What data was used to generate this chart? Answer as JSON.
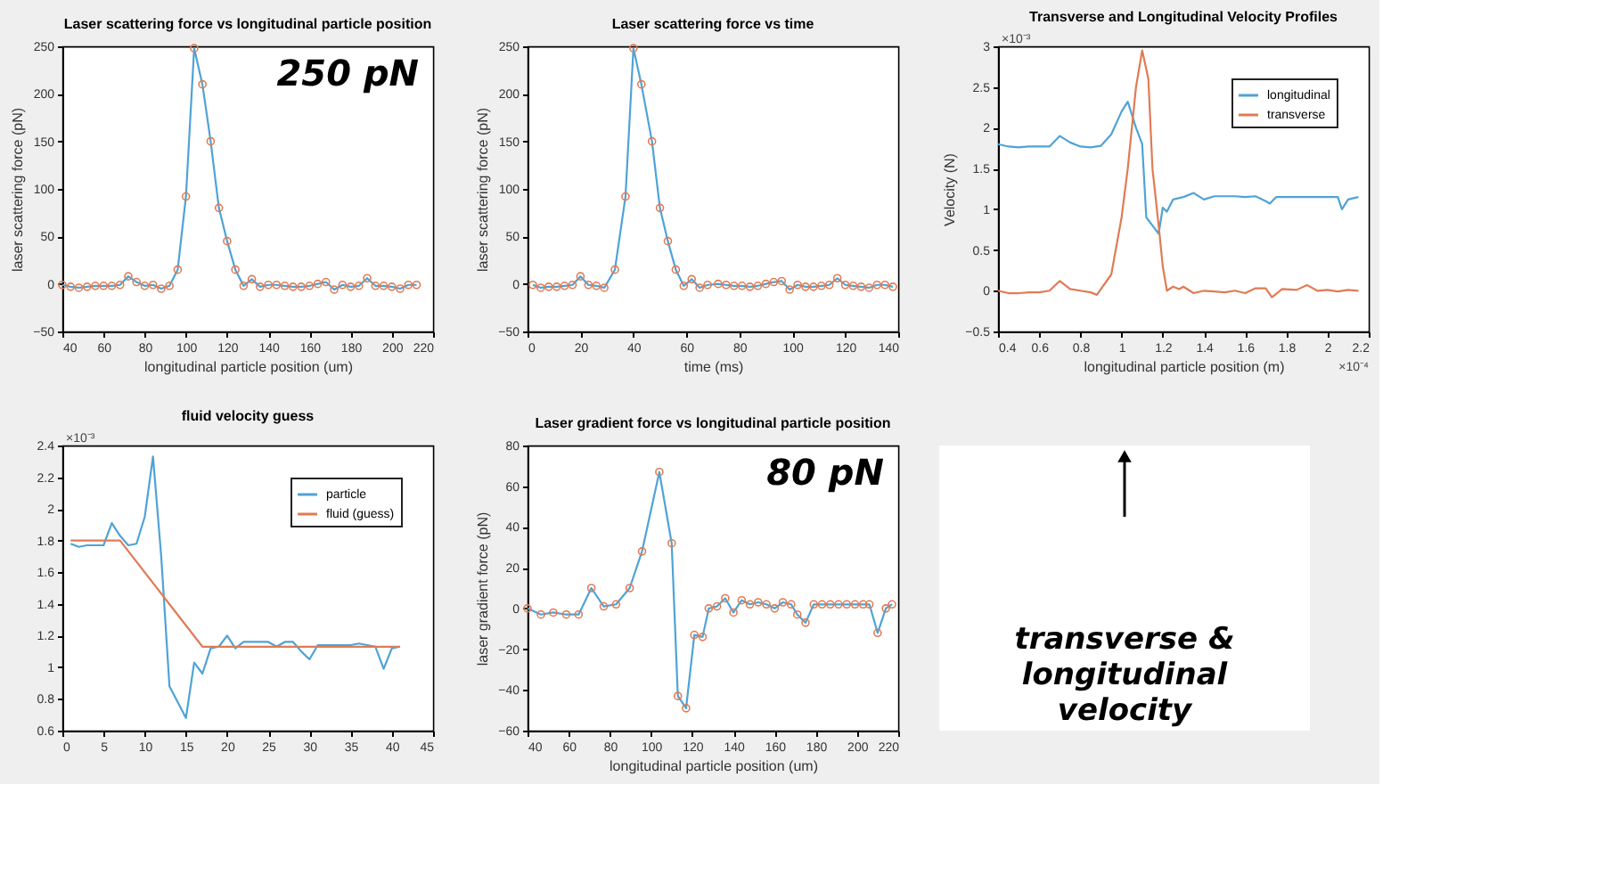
{
  "chart_data": [
    {
      "type": "line",
      "title": "Laser scattering force vs longitudinal particle position",
      "xlabel": "longitudinal particle position (um)",
      "ylabel": "laser scattering force (pN)",
      "xlim": [
        40,
        220
      ],
      "xticks": [
        40,
        60,
        80,
        100,
        120,
        140,
        160,
        180,
        200,
        220
      ],
      "ylim": [
        -50,
        250
      ],
      "yticks": [
        -50,
        0,
        50,
        100,
        150,
        200,
        250
      ],
      "annotations": [
        "250 pN"
      ],
      "x": [
        40,
        44,
        48,
        52,
        56,
        60,
        64,
        68,
        72,
        76,
        80,
        84,
        88,
        92,
        96,
        100,
        104,
        108,
        112,
        116,
        120,
        124,
        128,
        132,
        136,
        140,
        144,
        148,
        152,
        156,
        160,
        164,
        168,
        172,
        176,
        180,
        184,
        188,
        192,
        196,
        200,
        204,
        208,
        212
      ],
      "series": [
        {
          "type": "line",
          "color": "#4fa3d6",
          "values": [
            -1,
            -3,
            -4,
            -3,
            -2,
            -2,
            -2,
            -1,
            8,
            2,
            -2,
            -1,
            -5,
            -2,
            15,
            92,
            248,
            210,
            150,
            80,
            45,
            15,
            -2,
            5,
            -3,
            -1,
            -1,
            -2,
            -3,
            -3,
            -2,
            0,
            2,
            -6,
            -1,
            -3,
            -2,
            6,
            -2,
            -2,
            -3,
            -5,
            -1,
            -1
          ]
        },
        {
          "type": "scatter",
          "marker": "circle",
          "color": "#e07b54",
          "values": [
            -1,
            -3,
            -4,
            -3,
            -2,
            -2,
            -2,
            -1,
            8,
            2,
            -2,
            -1,
            -5,
            -2,
            15,
            92,
            248,
            210,
            150,
            80,
            45,
            15,
            -2,
            5,
            -3,
            -1,
            -1,
            -2,
            -3,
            -3,
            -2,
            0,
            2,
            -6,
            -1,
            -3,
            -2,
            6,
            -2,
            -2,
            -3,
            -5,
            -1,
            -1
          ]
        }
      ]
    },
    {
      "type": "line",
      "title": "Laser scattering force vs time",
      "xlabel": "time (ms)",
      "ylabel": "laser scattering force (pN)",
      "xlim": [
        0,
        140
      ],
      "xticks": [
        0,
        20,
        40,
        60,
        80,
        100,
        120,
        140
      ],
      "ylim": [
        -50,
        250
      ],
      "yticks": [
        -50,
        0,
        50,
        100,
        150,
        200,
        250
      ],
      "x": [
        2,
        5,
        8,
        11,
        14,
        17,
        20,
        23,
        26,
        29,
        33,
        37,
        40,
        43,
        47,
        50,
        53,
        56,
        59,
        62,
        65,
        68,
        72,
        75,
        78,
        81,
        84,
        87,
        90,
        93,
        96,
        99,
        102,
        105,
        108,
        111,
        114,
        117,
        120,
        123,
        126,
        129,
        132,
        135,
        138
      ],
      "series": [
        {
          "type": "line",
          "color": "#4fa3d6",
          "values": [
            -1,
            -4,
            -3,
            -3,
            -2,
            -1,
            8,
            -1,
            -2,
            -4,
            15,
            92,
            248,
            210,
            150,
            80,
            45,
            15,
            -2,
            5,
            -4,
            -1,
            0,
            -1,
            -2,
            -2,
            -3,
            -2,
            0,
            2,
            3,
            -6,
            -1,
            -3,
            -3,
            -2,
            -1,
            6,
            -1,
            -2,
            -3,
            -4,
            -1,
            -1,
            -3
          ]
        },
        {
          "type": "scatter",
          "marker": "circle",
          "color": "#e07b54",
          "values": [
            -1,
            -4,
            -3,
            -3,
            -2,
            -1,
            8,
            -1,
            -2,
            -4,
            15,
            92,
            248,
            210,
            150,
            80,
            45,
            15,
            -2,
            5,
            -4,
            -1,
            0,
            -1,
            -2,
            -2,
            -3,
            -2,
            0,
            2,
            3,
            -6,
            -1,
            -3,
            -3,
            -2,
            -1,
            6,
            -1,
            -2,
            -3,
            -4,
            -1,
            -1,
            -3
          ]
        }
      ]
    },
    {
      "type": "line",
      "title": "Transverse and Longitudinal Velocity Profiles",
      "xlabel": "longitudinal particle position (m)",
      "ylabel": "Velocity (N)",
      "xlim": [
        0.4,
        2.2
      ],
      "xticks": [
        0.4,
        0.6,
        0.8,
        1,
        1.2,
        1.4,
        1.6,
        1.8,
        2,
        2.2
      ],
      "ylim": [
        -0.5,
        3
      ],
      "yticks": [
        -0.5,
        0,
        0.5,
        1,
        1.5,
        2,
        2.5,
        3
      ],
      "legend": "top right",
      "annotations": [
        "×10⁻³",
        "×10⁻⁴"
      ],
      "series": [
        {
          "name": "longitudinal",
          "type": "line",
          "color": "#4fa3d6",
          "x": [
            0.4,
            0.45,
            0.5,
            0.55,
            0.6,
            0.65,
            0.7,
            0.75,
            0.8,
            0.85,
            0.9,
            0.95,
            1.0,
            1.03,
            1.07,
            1.1,
            1.12,
            1.15,
            1.18,
            1.2,
            1.22,
            1.25,
            1.3,
            1.35,
            1.4,
            1.45,
            1.5,
            1.55,
            1.6,
            1.65,
            1.7,
            1.72,
            1.75,
            1.8,
            1.85,
            1.9,
            1.95,
            2.0,
            2.05,
            2.07,
            2.1,
            2.15
          ],
          "values": [
            1.8,
            1.77,
            1.76,
            1.77,
            1.77,
            1.77,
            1.9,
            1.82,
            1.77,
            1.76,
            1.78,
            1.92,
            2.2,
            2.32,
            2.0,
            1.8,
            0.9,
            0.8,
            0.7,
            1.02,
            0.97,
            1.12,
            1.15,
            1.2,
            1.12,
            1.16,
            1.16,
            1.16,
            1.15,
            1.16,
            1.1,
            1.07,
            1.15,
            1.15,
            1.15,
            1.15,
            1.15,
            1.15,
            1.15,
            1.0,
            1.12,
            1.15
          ]
        },
        {
          "name": "transverse",
          "type": "line",
          "color": "#e07b54",
          "x": [
            0.4,
            0.45,
            0.5,
            0.55,
            0.6,
            0.65,
            0.7,
            0.75,
            0.8,
            0.85,
            0.88,
            0.95,
            1.0,
            1.03,
            1.07,
            1.1,
            1.13,
            1.15,
            1.18,
            1.2,
            1.22,
            1.25,
            1.28,
            1.3,
            1.35,
            1.4,
            1.45,
            1.5,
            1.55,
            1.6,
            1.65,
            1.7,
            1.73,
            1.78,
            1.85,
            1.9,
            1.95,
            2.0,
            2.05,
            2.1,
            2.15
          ],
          "values": [
            0,
            -0.03,
            -0.03,
            -0.02,
            -0.02,
            0,
            0.12,
            0.02,
            0,
            -0.02,
            -0.05,
            0.2,
            0.9,
            1.5,
            2.5,
            2.95,
            2.6,
            1.5,
            0.8,
            0.3,
            0,
            0.05,
            0.02,
            0.05,
            -0.03,
            0,
            -0.01,
            -0.02,
            0,
            -0.03,
            0.03,
            0.03,
            -0.08,
            0.02,
            0.01,
            0.07,
            0,
            0.01,
            -0.01,
            0.01,
            0
          ]
        }
      ]
    },
    {
      "type": "line",
      "title": "fluid velocity guess",
      "xlim": [
        0,
        45
      ],
      "xticks": [
        0,
        5,
        10,
        15,
        20,
        25,
        30,
        35,
        40,
        45
      ],
      "ylim": [
        0.6,
        2.4
      ],
      "yticks": [
        0.6,
        0.8,
        1,
        1.2,
        1.4,
        1.6,
        1.8,
        2,
        2.2,
        2.4
      ],
      "legend": "top right",
      "annotations": [
        "×10⁻³"
      ],
      "series": [
        {
          "name": "particle",
          "type": "line",
          "color": "#4fa3d6",
          "x": [
            1,
            2,
            3,
            4,
            5,
            6,
            7,
            8,
            9,
            10,
            11,
            12,
            13,
            14,
            15,
            16,
            17,
            18,
            19,
            20,
            21,
            22,
            23,
            24,
            25,
            26,
            27,
            28,
            29,
            30,
            31,
            32,
            33,
            34,
            35,
            36,
            37,
            38,
            39,
            40,
            41
          ],
          "values": [
            1.78,
            1.76,
            1.77,
            1.77,
            1.77,
            1.91,
            1.83,
            1.77,
            1.78,
            1.95,
            2.33,
            1.7,
            0.88,
            0.78,
            0.68,
            1.03,
            0.96,
            1.12,
            1.13,
            1.2,
            1.12,
            1.16,
            1.16,
            1.16,
            1.16,
            1.13,
            1.16,
            1.16,
            1.1,
            1.05,
            1.14,
            1.14,
            1.14,
            1.14,
            1.14,
            1.15,
            1.14,
            1.13,
            0.99,
            1.12,
            1.13
          ]
        },
        {
          "name": "fluid (guess)",
          "type": "line",
          "color": "#e07b54",
          "x": [
            1,
            7,
            17,
            41
          ],
          "values": [
            1.8,
            1.8,
            1.13,
            1.13
          ]
        }
      ]
    },
    {
      "type": "line",
      "title": "Laser gradient force vs longitudinal particle position",
      "xlabel": "longitudinal particle position (um)",
      "ylabel": "laser gradient force (pN)",
      "xlim": [
        40,
        220
      ],
      "xticks": [
        40,
        60,
        80,
        100,
        120,
        140,
        160,
        180,
        200,
        220
      ],
      "ylim": [
        -60,
        80
      ],
      "yticks": [
        -60,
        -40,
        -20,
        0,
        20,
        40,
        60,
        80
      ],
      "annotations": [
        "80 pN"
      ],
      "x": [
        40,
        46.5,
        52.5,
        58.8,
        64.8,
        71,
        77,
        83,
        89.6,
        95.6,
        104,
        110,
        113,
        117,
        121,
        125,
        128,
        132,
        136,
        140,
        144,
        148,
        152,
        156,
        160,
        164,
        168,
        171,
        175,
        179,
        183,
        187,
        191,
        195,
        199,
        203,
        206,
        210,
        214,
        217
      ],
      "series": [
        {
          "type": "line",
          "color": "#4fa3d6",
          "values": [
            0,
            -3,
            -2,
            -3,
            -3,
            10,
            1,
            2,
            10,
            28,
            67,
            32,
            -43,
            -49,
            -13,
            -14,
            0,
            1,
            5,
            -2,
            4,
            2,
            3,
            2,
            0,
            3,
            2,
            -3,
            -7,
            2,
            2,
            2,
            2,
            2,
            2,
            2,
            2,
            -12,
            0,
            2
          ]
        },
        {
          "type": "scatter",
          "marker": "circle",
          "color": "#e07b54",
          "values": [
            0,
            -3,
            -2,
            -3,
            -3,
            10,
            1,
            2,
            10,
            28,
            67,
            32,
            -43,
            -49,
            -13,
            -14,
            0,
            1,
            5,
            -2,
            4,
            2,
            3,
            2,
            0,
            3,
            2,
            -3,
            -7,
            2,
            2,
            2,
            2,
            2,
            2,
            2,
            2,
            -12,
            0,
            2
          ]
        }
      ]
    },
    {
      "type": "other",
      "annotations": [
        "transverse &\nlongitudinal\nvelocity"
      ]
    }
  ]
}
